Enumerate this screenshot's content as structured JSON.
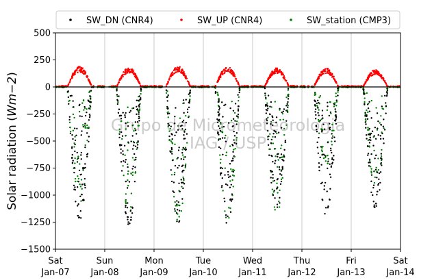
{
  "chart_data": {
    "type": "scatter",
    "title": "",
    "xlabel": "",
    "ylabel": "Solar radiation (",
    "ylabel_math": "Wm−2",
    "ylabel_close": ")",
    "ylim": [
      -1500,
      500
    ],
    "yticks": [
      500,
      250,
      0,
      -250,
      -500,
      -750,
      -1000,
      -1250,
      -1500
    ],
    "ytick_labels": [
      "500",
      "250",
      "0",
      "−250",
      "−500",
      "−750",
      "−1000",
      "−1250",
      "−1500"
    ],
    "xlim": [
      "2017-01-07",
      "2017-01-14"
    ],
    "xticks": [
      {
        "day": "Sat",
        "date": "Jan-07"
      },
      {
        "day": "Sun",
        "date": "Jan-08"
      },
      {
        "day": "Mon",
        "date": "Jan-09"
      },
      {
        "day": "Tue",
        "date": "Jan-10"
      },
      {
        "day": "Wed",
        "date": "Jan-11"
      },
      {
        "day": "Thu",
        "date": "Jan-12"
      },
      {
        "day": "Fri",
        "date": "Jan-13"
      },
      {
        "day": "Sat",
        "date": "Jan-14"
      }
    ],
    "grid": "vertical",
    "legend_position": "top",
    "watermark_lines": [
      "Grupo de Micrometeorologia",
      "IAG / USP"
    ],
    "series": [
      {
        "name": "SW_DN (CNR4)",
        "color": "#000000",
        "marker": "dot",
        "daily_min": [
          -1230,
          -1280,
          -1260,
          -1270,
          -1150,
          -1190,
          -1120
        ]
      },
      {
        "name": "SW_UP (CNR4)",
        "color": "#ff0000",
        "marker": "dot",
        "daily_max": [
          190,
          180,
          190,
          190,
          175,
          175,
          160
        ]
      },
      {
        "name": "SW_station (CMP3)",
        "color": "#008000",
        "marker": "dot",
        "daily_min": [
          -1090,
          -1170,
          -1250,
          -1250,
          -1170,
          -720,
          -930
        ]
      }
    ]
  }
}
